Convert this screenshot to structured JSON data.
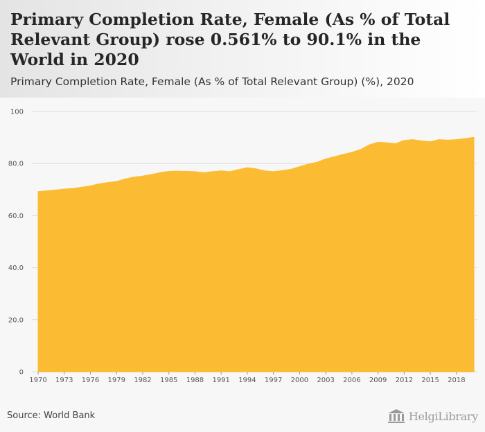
{
  "header": {
    "title": "Primary Completion Rate, Female (As % of Total Relevant Group) rose 0.561% to 90.1% in the World in 2020",
    "subtitle": "Primary Completion Rate, Female (As % of Total Relevant Group) (%), 2020"
  },
  "footer": {
    "source": "Source: World Bank",
    "logo_text": "HelgiLibrary"
  },
  "colors": {
    "area_fill": "#fbbc33",
    "grid": "#dedede",
    "background": "#f7f7f7"
  },
  "chart_data": {
    "type": "area",
    "title": "Primary Completion Rate, Female (As % of Total Relevant Group) (%), 2020",
    "xlabel": "",
    "ylabel": "",
    "ylim": [
      0,
      100
    ],
    "grid": true,
    "y_ticks": [
      "0",
      "20.0",
      "40.0",
      "60.0",
      "80.0",
      "100"
    ],
    "x_ticks": [
      "1970",
      "1973",
      "1976",
      "1979",
      "1982",
      "1985",
      "1988",
      "1991",
      "1994",
      "1997",
      "2000",
      "2003",
      "2006",
      "2009",
      "2012",
      "2015",
      "2018"
    ],
    "x": [
      1970,
      1971,
      1972,
      1973,
      1974,
      1975,
      1976,
      1977,
      1978,
      1979,
      1980,
      1981,
      1982,
      1983,
      1984,
      1985,
      1986,
      1987,
      1988,
      1989,
      1990,
      1991,
      1992,
      1993,
      1994,
      1995,
      1996,
      1997,
      1998,
      1999,
      2000,
      2001,
      2002,
      2003,
      2004,
      2005,
      2006,
      2007,
      2008,
      2009,
      2010,
      2011,
      2012,
      2013,
      2014,
      2015,
      2016,
      2017,
      2018,
      2019,
      2020
    ],
    "series": [
      {
        "values": [
          69.2,
          69.5,
          69.8,
          70.2,
          70.4,
          70.9,
          71.4,
          72.2,
          72.7,
          73.1,
          74.1,
          74.8,
          75.2,
          75.8,
          76.5,
          77.0,
          77.1,
          77.0,
          76.9,
          76.5,
          76.9,
          77.2,
          76.9,
          77.7,
          78.4,
          78.0,
          77.2,
          76.9,
          77.3,
          77.8,
          78.8,
          79.8,
          80.5,
          81.8,
          82.6,
          83.5,
          84.3,
          85.4,
          87.2,
          88.2,
          88.0,
          87.6,
          88.9,
          89.2,
          88.7,
          88.4,
          89.2,
          89.0,
          89.2,
          89.6,
          90.1
        ]
      }
    ]
  }
}
